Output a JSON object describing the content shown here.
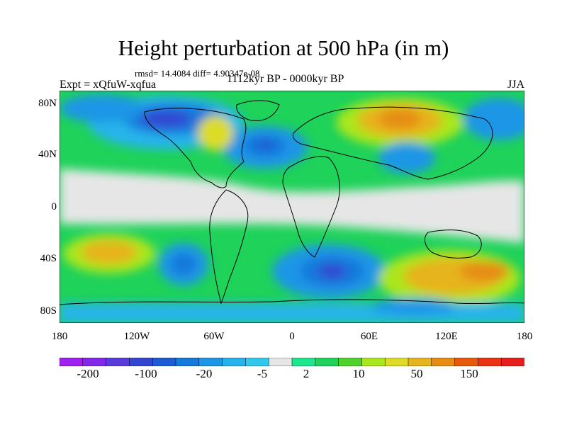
{
  "title": "Height perturbation at 500 hPa (in m)",
  "stats": "rmsd= 14.4084 diff= 4.90347e-08",
  "left_label": "Expt = xQfuW-xqfua",
  "center_label": "1112kyr BP - 0000kyr BP",
  "right_label": "JJA",
  "lat_ticks": [
    "80N",
    "40N",
    "0",
    "40S",
    "80S"
  ],
  "lon_ticks": [
    "180",
    "120W",
    "60W",
    "0",
    "60E",
    "120E",
    "180"
  ],
  "colorbar": {
    "colors": [
      "#a020f0",
      "#8228e6",
      "#5a3cdc",
      "#3246d2",
      "#1e5ad2",
      "#1478dc",
      "#1e96e6",
      "#28b4eb",
      "#32c8ee",
      "#e6e6e6",
      "#1ee68c",
      "#1ed25a",
      "#50d22d",
      "#aae61e",
      "#dcdc28",
      "#e6b41e",
      "#e68c14",
      "#e65a0a",
      "#eb3214",
      "#e61e1e"
    ],
    "labels": [
      "-200",
      "-100",
      "-20",
      "-5",
      "2",
      "10",
      "50",
      "150"
    ]
  },
  "colors": {
    "ocean": "#1e96e6",
    "land": "#28b4eb",
    "outline": "#000000"
  }
}
